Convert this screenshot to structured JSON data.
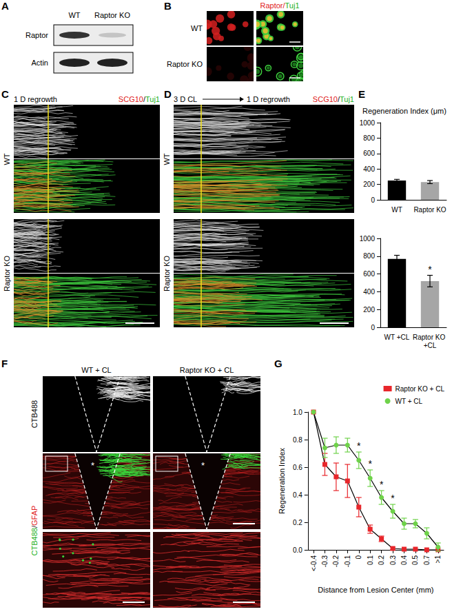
{
  "panels": {
    "letters": [
      "A",
      "B",
      "C",
      "D",
      "E",
      "F",
      "G"
    ],
    "A": {
      "columns": [
        "WT",
        "Raptor KO"
      ],
      "rows": [
        "Raptor",
        "Actin"
      ]
    },
    "B": {
      "stain": [
        {
          "text": "Raptor",
          "color": "#e02020"
        },
        {
          "text": "/",
          "color": "#e02020"
        },
        {
          "text": "Tuj1",
          "color": "#22b022"
        }
      ],
      "rows": [
        "WT",
        "Raptor KO"
      ]
    },
    "C": {
      "condition": [
        "1 D regrowth"
      ],
      "stain": [
        {
          "text": "SCG10",
          "color": "#e02020"
        },
        {
          "text": "/",
          "color": "#000000"
        },
        {
          "text": "Tuj1",
          "color": "#22b022"
        }
      ],
      "rows": [
        "WT",
        "Raptor KO"
      ]
    },
    "D": {
      "condition": [
        "3 D CL",
        "1 D regrowth"
      ],
      "stain": [
        {
          "text": "SCG10",
          "color": "#e02020"
        },
        {
          "text": "/",
          "color": "#000000"
        },
        {
          "text": "Tuj1",
          "color": "#22b022"
        }
      ],
      "rows": [
        "WT",
        "Raptor KO"
      ]
    },
    "F": {
      "columns": [
        "WT + CL",
        "Raptor KO + CL"
      ],
      "rows": [
        [
          {
            "text": "CTB488",
            "color": "#000000"
          }
        ],
        [
          {
            "text": "CTB488",
            "color": "#22b022"
          },
          {
            "text": "/",
            "color": "#000000"
          },
          {
            "text": "GFAP",
            "color": "#e02020"
          }
        ]
      ],
      "lesion_mark": "*"
    }
  },
  "chart_data": [
    {
      "type": "bar",
      "title": "Regeneration Index (μm)",
      "categories": [
        "WT",
        "Raptor KO"
      ],
      "values": [
        250,
        230
      ],
      "errors": [
        15,
        20
      ],
      "colors": [
        "#000000",
        "#a6a6a6"
      ],
      "ylim": [
        0,
        1000
      ],
      "yticks": [
        0,
        200,
        400,
        600,
        800,
        1000
      ],
      "grid": false
    },
    {
      "type": "bar",
      "categories": [
        "WT +CL",
        "Raptor KO +CL"
      ],
      "values": [
        770,
        520
      ],
      "errors": [
        40,
        65
      ],
      "colors": [
        "#000000",
        "#a6a6a6"
      ],
      "ylim": [
        0,
        1000
      ],
      "yticks": [
        0,
        200,
        400,
        600,
        800,
        1000
      ],
      "grid": false,
      "annotations": [
        {
          "category": "Raptor KO +CL",
          "text": "*"
        }
      ]
    },
    {
      "type": "line",
      "xlabel": "Distance from Lesion Center (mm)",
      "ylabel": "Regeneration Index",
      "categories": [
        "<-0.4",
        "-0.3",
        "-0.2",
        "-0.1",
        "0",
        "0.1",
        "0.2",
        "0.3",
        "0.4",
        "0.5",
        "0.7",
        ">1"
      ],
      "series": [
        {
          "name": "Raptor KO + CL",
          "color": "#e8262b",
          "marker": "square",
          "values": [
            1.0,
            0.62,
            0.53,
            0.5,
            0.31,
            0.15,
            0.08,
            0.01,
            0.005,
            0.005,
            0.0,
            0.0
          ],
          "errors": [
            0.0,
            0.08,
            0.1,
            0.12,
            0.07,
            0.03,
            0.02,
            0.01,
            0.0,
            0.0,
            0.0,
            0.0
          ]
        },
        {
          "name": "WT + CL",
          "color": "#6fd24a",
          "marker": "circle",
          "values": [
            1.0,
            0.74,
            0.76,
            0.76,
            0.65,
            0.52,
            0.38,
            0.28,
            0.19,
            0.19,
            0.12,
            0.02
          ],
          "errors": [
            0.0,
            0.07,
            0.06,
            0.05,
            0.06,
            0.06,
            0.05,
            0.05,
            0.04,
            0.03,
            0.04,
            0.03
          ]
        }
      ],
      "ylim": [
        0,
        1
      ],
      "yticks": [
        {
          "value": 0,
          "label": "0.0"
        },
        0.2,
        0.4,
        0.6,
        0.8,
        {
          "value": 1,
          "label": "1.0"
        }
      ],
      "legend": "top-right",
      "grid": false,
      "annotations": [
        {
          "category": "0",
          "text": "*"
        },
        {
          "category": "0.1",
          "text": "*"
        },
        {
          "category": "0.2",
          "text": "*"
        },
        {
          "category": "0.3",
          "text": "*"
        }
      ]
    }
  ]
}
